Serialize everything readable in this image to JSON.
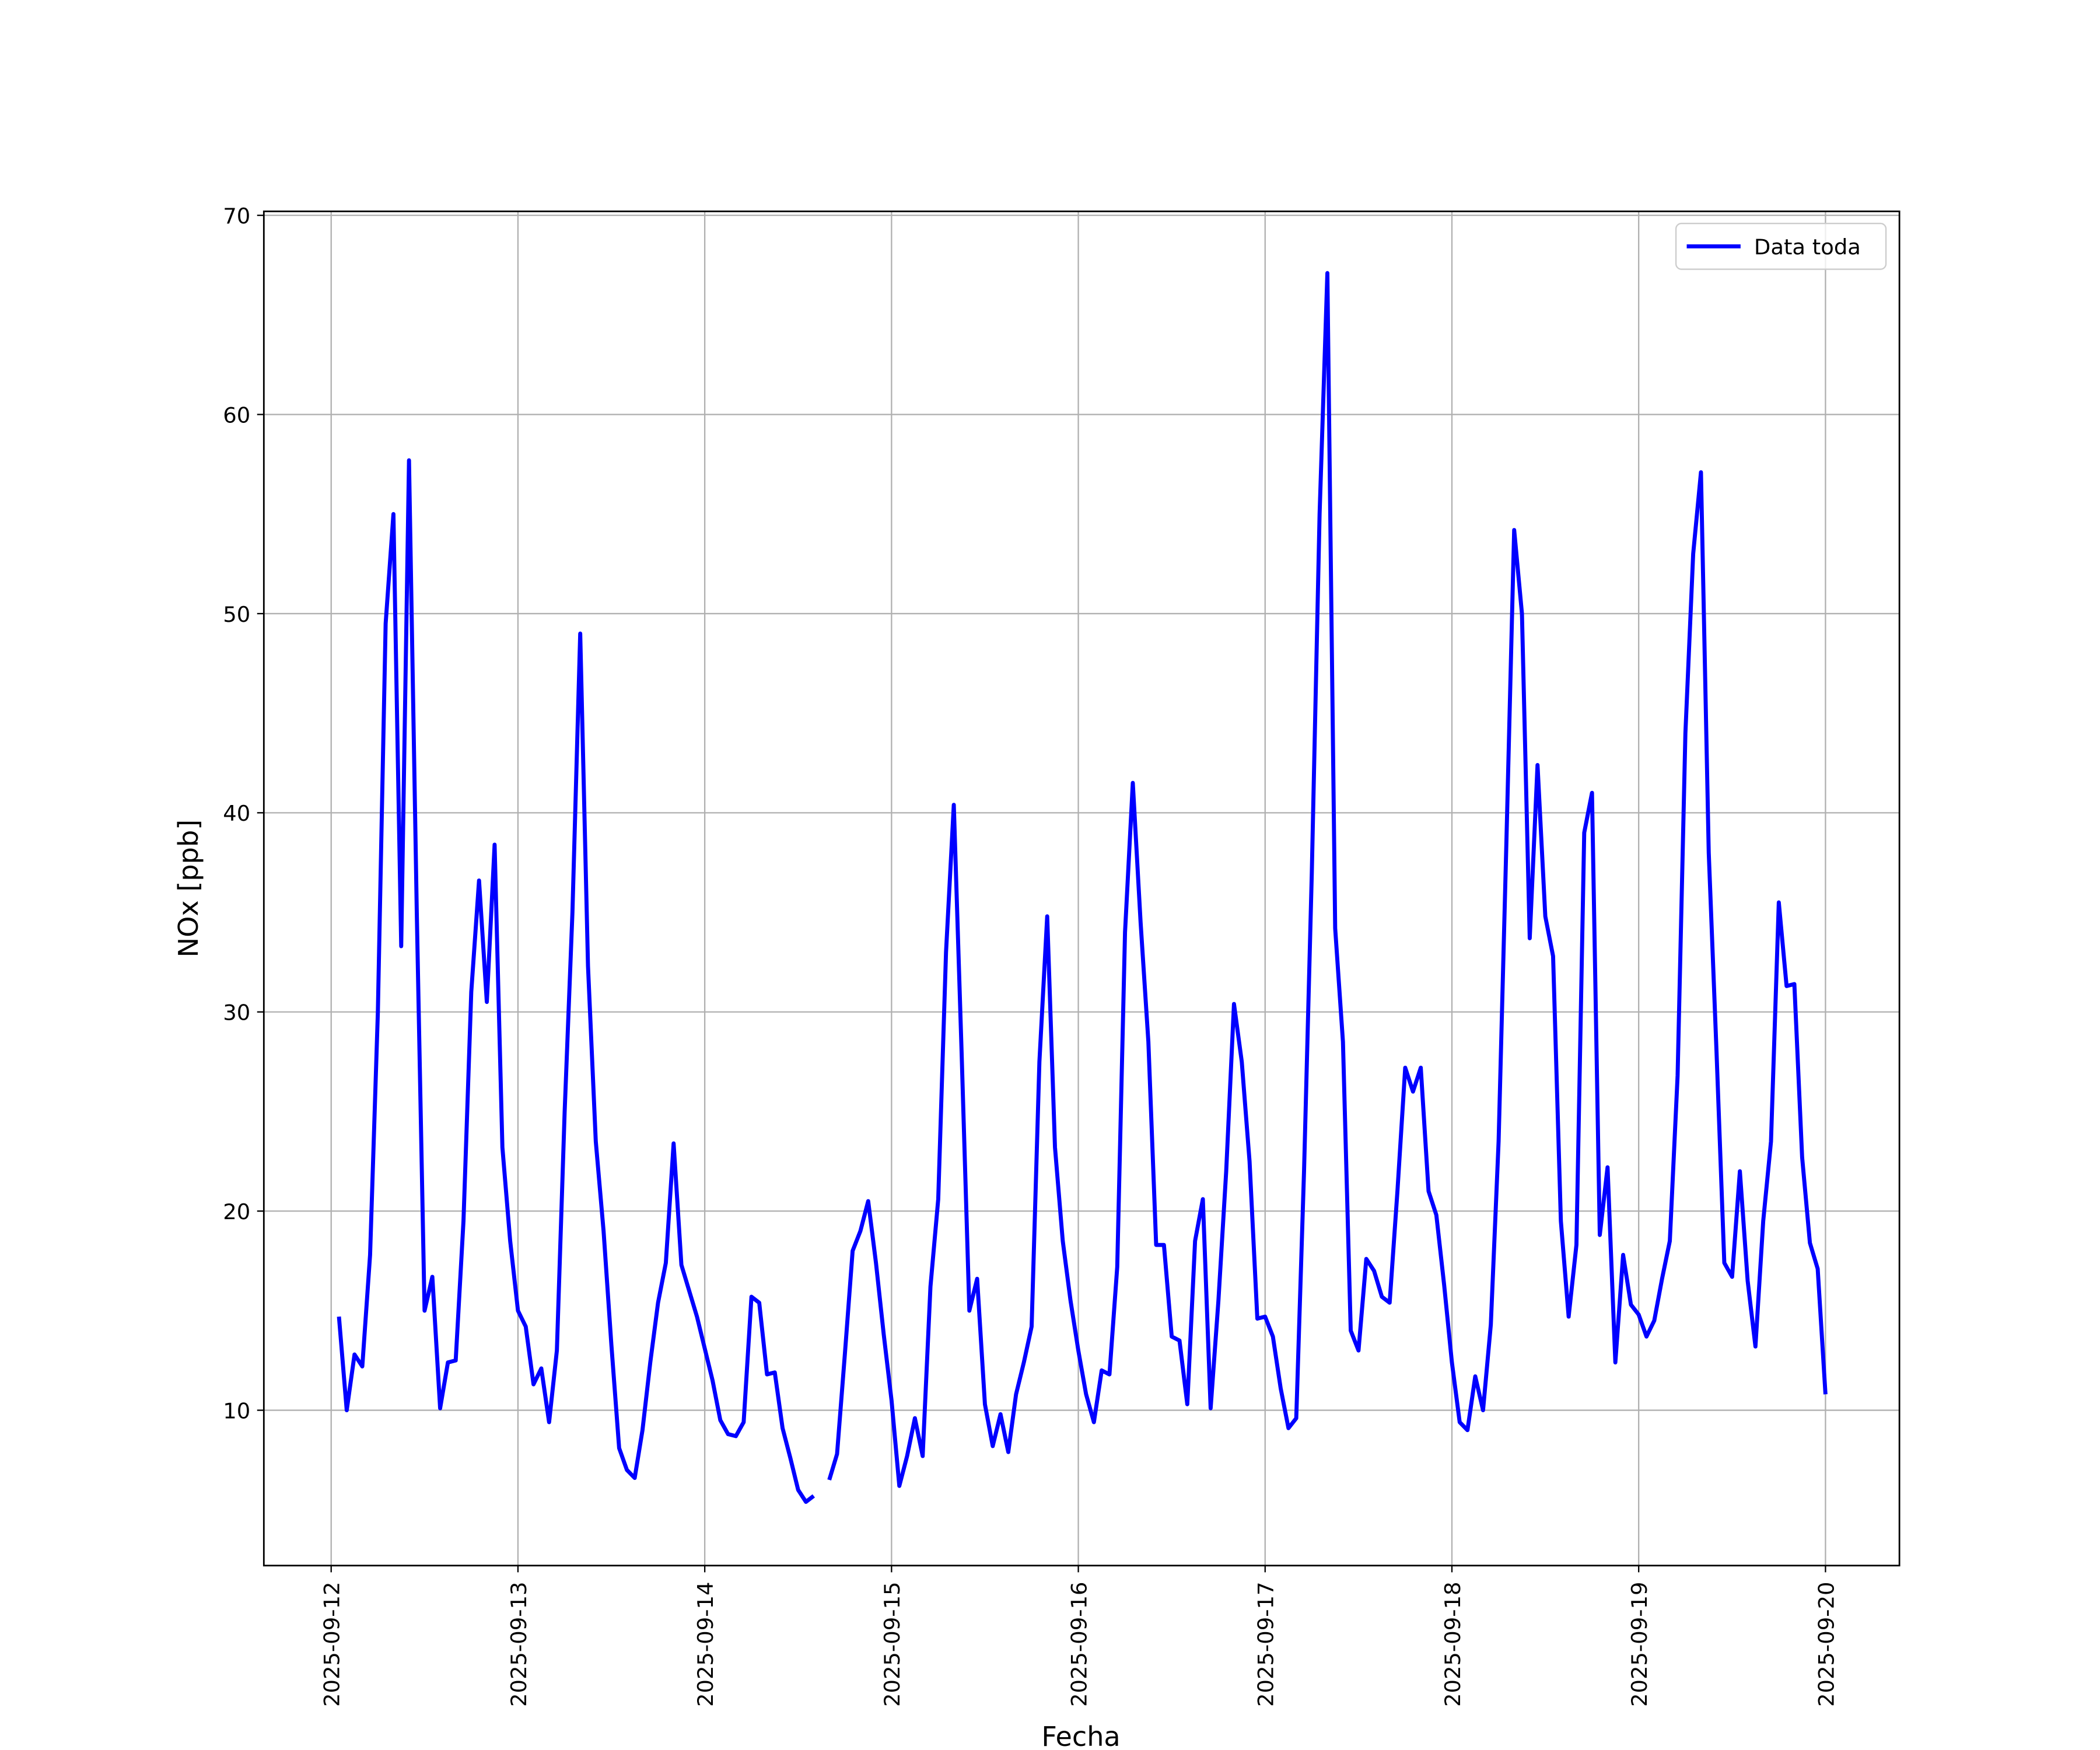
{
  "chart_data": {
    "type": "line",
    "x_label": "Fecha",
    "y_label": "NOx [ppb]",
    "x": [
      1,
      2,
      3,
      4,
      5,
      6,
      7,
      8,
      9,
      10,
      11,
      12,
      13,
      14,
      15,
      16,
      17,
      18,
      19,
      20,
      21,
      22,
      23,
      24,
      25,
      26,
      27,
      28,
      29,
      30,
      31,
      32,
      33,
      34,
      35,
      36,
      37,
      38,
      39,
      40,
      41,
      42,
      43,
      44,
      45,
      46,
      47,
      48,
      49,
      50,
      51,
      52,
      53,
      54,
      55,
      56,
      57,
      58,
      59,
      60,
      61,
      62,
      63,
      64,
      65,
      66,
      67,
      68,
      69,
      70,
      71,
      72,
      73,
      74,
      75,
      76,
      77,
      78,
      79,
      80,
      81,
      82,
      83,
      84,
      85,
      86,
      87,
      88,
      89,
      90,
      91,
      92,
      93,
      94,
      95,
      96,
      97,
      98,
      99,
      100,
      101,
      102,
      103,
      104,
      105,
      106,
      107,
      108,
      109,
      110,
      111,
      112,
      113,
      114,
      115,
      116,
      117,
      118,
      119,
      120,
      121,
      122,
      123,
      124,
      125,
      126,
      127,
      128,
      129,
      130,
      131,
      132,
      133,
      134,
      135,
      136,
      137,
      138,
      139,
      140,
      141,
      142,
      143,
      144,
      145,
      146,
      147,
      148,
      149,
      150,
      151,
      152,
      153,
      154,
      155,
      156,
      157,
      158,
      159,
      160,
      161,
      162,
      163,
      164,
      165,
      166,
      167,
      168,
      169,
      170,
      171,
      172,
      173,
      174,
      175,
      176,
      177,
      178,
      179,
      180,
      181,
      182,
      183,
      184,
      185,
      186,
      187,
      188,
      189,
      190,
      191,
      192
    ],
    "series": [
      {
        "name": "Data toda",
        "color": "#0000ff",
        "values": [
          14.7,
          10.0,
          12.8,
          12.2,
          17.8,
          30,
          49.5,
          55,
          33.3,
          57.7,
          35,
          15,
          16.7,
          10.1,
          12.4,
          12.5,
          19.5,
          31,
          36.6,
          30.5,
          38.4,
          23.2,
          18.5,
          15,
          14.2,
          11.3,
          12.1,
          9.4,
          13,
          25,
          35,
          49,
          32.3,
          23.5,
          19,
          13.3,
          8.1,
          7.0,
          6.6,
          9.0,
          12.4,
          15.4,
          17.4,
          23.4,
          17.3,
          16,
          14.7,
          13.1,
          11.5,
          9.5,
          8.8,
          8.7,
          9.4,
          15.7,
          15.4,
          11.8,
          11.9,
          9.1,
          7.6,
          6.0,
          5.4,
          5.7,
          null,
          6.5,
          7.8,
          12.8,
          18,
          19,
          20.5,
          17.4,
          13.8,
          10.5,
          6.2,
          7.7,
          9.6,
          7.7,
          16.2,
          20.6,
          33,
          40.4,
          28,
          15,
          16.6,
          10.3,
          8.2,
          9.8,
          7.9,
          10.8,
          12.4,
          14.2,
          27.5,
          34.8,
          23.2,
          18.5,
          15.5,
          13,
          10.8,
          9.4,
          12,
          11.8,
          17.2,
          34,
          41.5,
          34.5,
          28.5,
          18.3,
          18.3,
          13.7,
          13.5,
          10.3,
          18.5,
          20.6,
          10.1,
          15.5,
          22,
          30.4,
          27.5,
          22.5,
          14.6,
          14.7,
          13.7,
          11.1,
          9.1,
          9.6,
          22,
          37,
          55,
          67.1,
          34.2,
          28.5,
          14,
          13,
          17.6,
          17,
          15.7,
          15.4,
          21,
          27.2,
          26,
          27.2,
          21,
          19.8,
          16.3,
          12.4,
          9.4,
          9.0,
          11.7,
          10.0,
          14.3,
          23.5,
          38.5,
          54.2,
          50,
          33.7,
          42.4,
          34.8,
          32.8,
          19.5,
          14.7,
          18.3,
          39,
          41,
          18.8,
          22.2,
          12.4,
          17.8,
          15.3,
          14.8,
          13.7,
          14.5,
          16.6,
          18.5,
          26.8,
          44,
          53,
          57.1,
          38,
          28,
          17.4,
          16.7,
          22,
          16.5,
          13.2,
          19.5,
          23.5,
          35.5,
          31.3,
          31.4,
          22.7,
          18.4,
          17.1,
          10.8
        ]
      }
    ],
    "xlim": [
      -8.65,
      201.5
    ],
    "xticks": [
      {
        "value": 0,
        "label": "2025-09-12"
      },
      {
        "value": 24,
        "label": "2025-09-13"
      },
      {
        "value": 48,
        "label": "2025-09-14"
      },
      {
        "value": 72,
        "label": "2025-09-15"
      },
      {
        "value": 96,
        "label": "2025-09-16"
      },
      {
        "value": 120,
        "label": "2025-09-17"
      },
      {
        "value": 144,
        "label": "2025-09-18"
      },
      {
        "value": 168,
        "label": "2025-09-19"
      },
      {
        "value": 192,
        "label": "2025-09-20"
      }
    ],
    "ylim": [
      2.2,
      70.2
    ],
    "yticks": [
      10,
      20,
      30,
      40,
      50,
      60,
      70
    ],
    "grid": true,
    "legend": "upper right"
  }
}
